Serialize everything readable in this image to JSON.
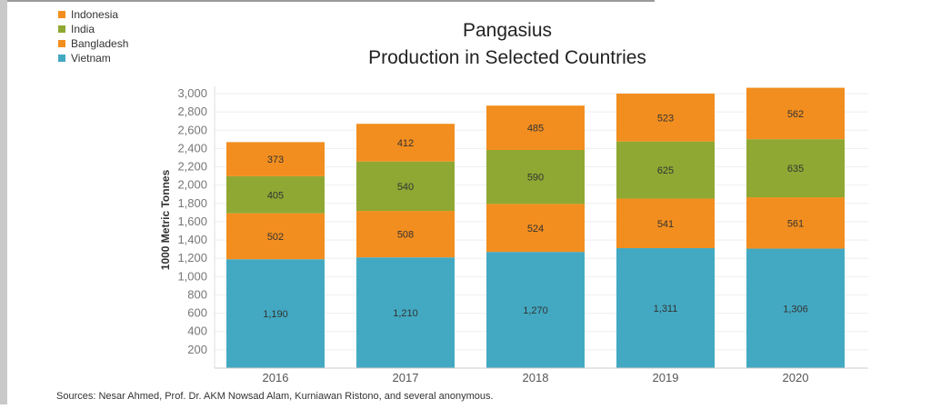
{
  "chart_data": {
    "type": "bar",
    "stacked": true,
    "title_lines": [
      "Pangasius",
      "Production in Selected Countries"
    ],
    "ylabel": "1000 Metric Tonnes",
    "ylim": [
      0,
      3000
    ],
    "yticks": [
      "200",
      "400",
      "600",
      "800",
      "1,000",
      "1,200",
      "1,400",
      "1,600",
      "1,800",
      "2,000",
      "2,200",
      "2,400",
      "2,600",
      "2,800",
      "3,000"
    ],
    "categories": [
      "2016",
      "2017",
      "2018",
      "2019",
      "2020"
    ],
    "series": [
      {
        "name": "Vietnam",
        "color": "#43a9c2",
        "values": [
          1190,
          1210,
          1270,
          1311,
          1306
        ],
        "labels": [
          "1,190",
          "1,210",
          "1,270",
          "1,311",
          "1,306"
        ]
      },
      {
        "name": "Bangladesh",
        "color": "#f28e1f",
        "values": [
          502,
          508,
          524,
          541,
          561
        ],
        "labels": [
          "502",
          "508",
          "524",
          "541",
          "561"
        ]
      },
      {
        "name": "India",
        "color": "#8fa833",
        "values": [
          405,
          540,
          590,
          625,
          635
        ],
        "labels": [
          "405",
          "540",
          "590",
          "625",
          "635"
        ]
      },
      {
        "name": "Indonesia",
        "color": "#f28e1f",
        "values": [
          373,
          412,
          485,
          523,
          562
        ],
        "labels": [
          "373",
          "412",
          "485",
          "523",
          "562"
        ]
      }
    ],
    "legend": {
      "placement": "top-left",
      "entries": [
        {
          "name": "Indonesia",
          "color": "#f28e1f"
        },
        {
          "name": "India",
          "color": "#8fa833"
        },
        {
          "name": "Bangladesh",
          "color": "#f28e1f"
        },
        {
          "name": "Vietnam",
          "color": "#43a9c2"
        }
      ]
    },
    "grid": true
  },
  "source": "Sources: Nesar Ahmed, Prof. Dr. AKM Nowsad Alam, Kurniawan Ristono, and several anonymous."
}
